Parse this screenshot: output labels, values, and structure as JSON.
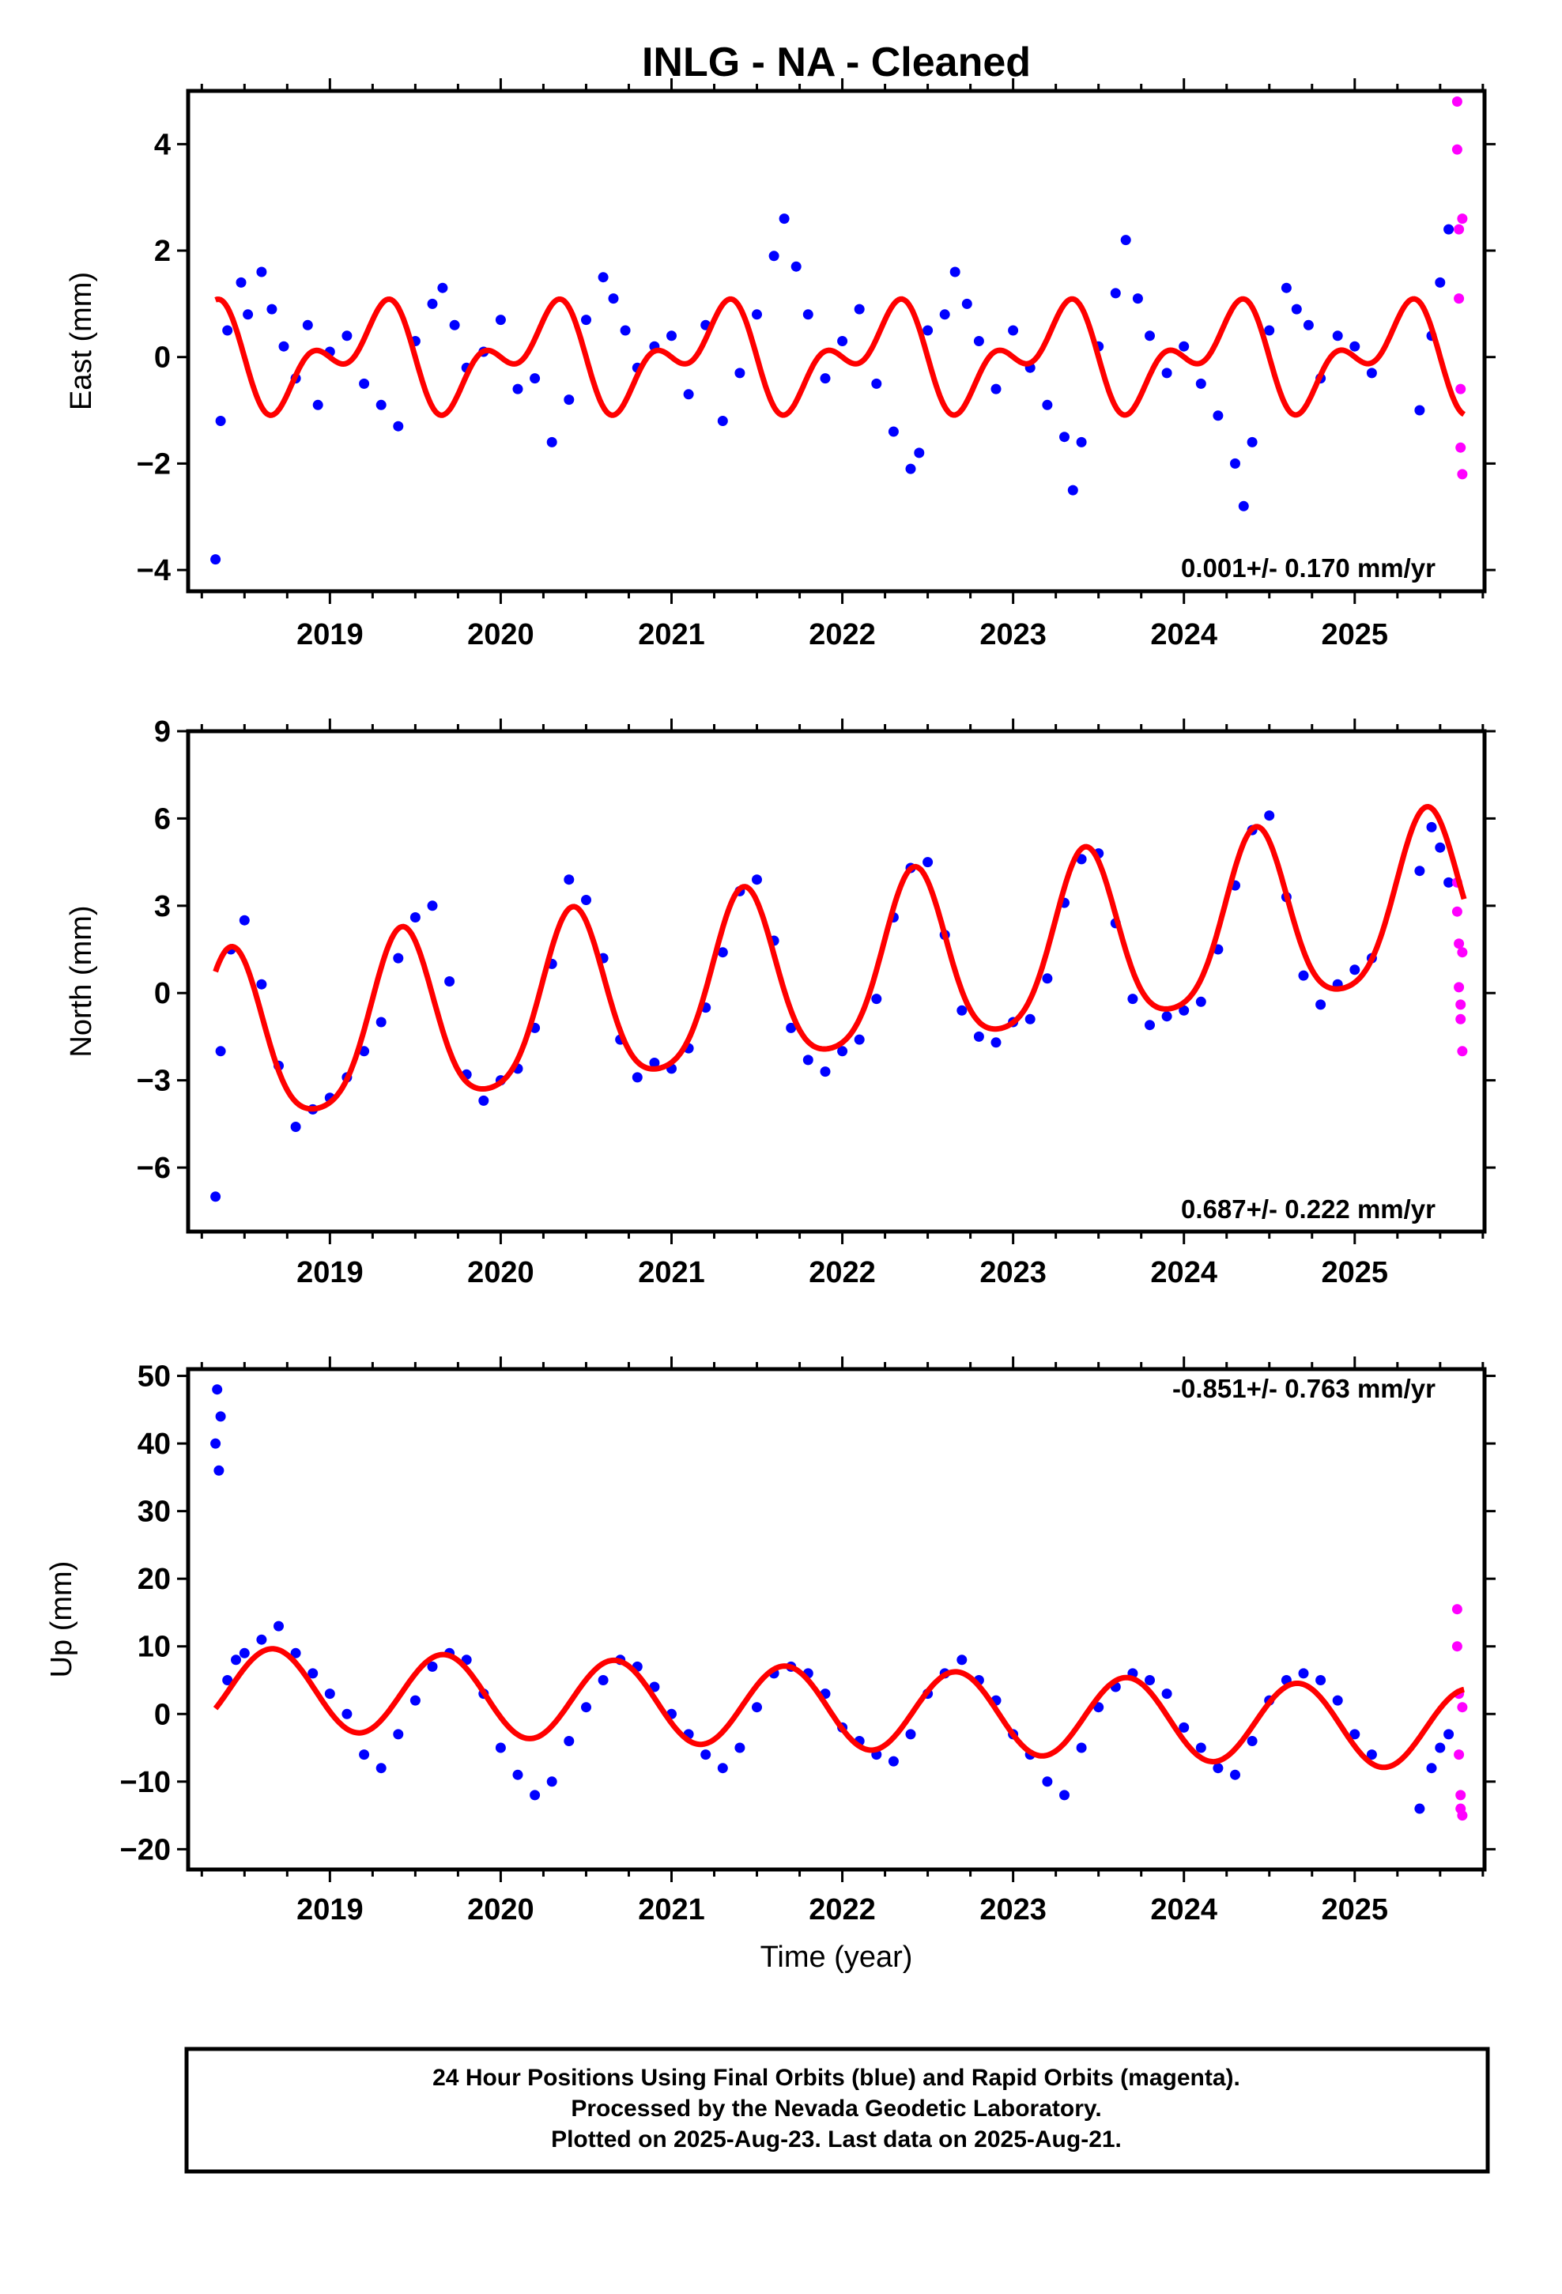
{
  "title": "INLG  - NA - Cleaned",
  "xlabel": "Time (year)",
  "colors": {
    "final": "#0000ff",
    "rapid": "#ff00ff",
    "model": "#ff0000",
    "axis": "#000000"
  },
  "footer": {
    "line1": "24 Hour Positions Using Final Orbits (blue) and Rapid Orbits (magenta).",
    "line2": "Processed by the Nevada Geodetic Laboratory.",
    "line3": "Plotted on 2025-Aug-23. Last data on 2025-Aug-21."
  },
  "chart_data": [
    {
      "type": "scatter",
      "ylabel": "East (mm)",
      "rate_label": "0.001+/- 0.170 mm/yr",
      "xlim": [
        2018.17,
        2025.76
      ],
      "ylim": [
        -4.4,
        5.0
      ],
      "yticks": [
        -4,
        -2,
        0,
        2,
        4
      ],
      "xticks": [
        2019,
        2020,
        2021,
        2022,
        2023,
        2024,
        2025
      ],
      "grid": false,
      "series": [
        {
          "kind": "final",
          "color": "#0000ff",
          "x": [
            2018.33,
            2018.36,
            2018.4,
            2018.48,
            2018.52,
            2018.6,
            2018.66,
            2018.73,
            2018.8,
            2018.87,
            2018.93,
            2019.0,
            2019.1,
            2019.2,
            2019.3,
            2019.4,
            2019.5,
            2019.6,
            2019.66,
            2019.73,
            2019.8,
            2019.9,
            2020.0,
            2020.1,
            2020.2,
            2020.3,
            2020.4,
            2020.5,
            2020.6,
            2020.66,
            2020.73,
            2020.8,
            2020.9,
            2021.0,
            2021.1,
            2021.2,
            2021.3,
            2021.4,
            2021.5,
            2021.6,
            2021.66,
            2021.73,
            2021.8,
            2021.9,
            2022.0,
            2022.1,
            2022.2,
            2022.3,
            2022.4,
            2022.45,
            2022.5,
            2022.6,
            2022.66,
            2022.73,
            2022.8,
            2022.9,
            2023.0,
            2023.1,
            2023.2,
            2023.3,
            2023.35,
            2023.4,
            2023.5,
            2023.6,
            2023.66,
            2023.73,
            2023.8,
            2023.9,
            2024.0,
            2024.1,
            2024.2,
            2024.3,
            2024.35,
            2024.4,
            2024.5,
            2024.6,
            2024.66,
            2024.73,
            2024.8,
            2024.9,
            2025.0,
            2025.1,
            2025.38,
            2025.45,
            2025.5,
            2025.55
          ],
          "y": [
            -3.8,
            -1.2,
            0.5,
            1.4,
            0.8,
            1.6,
            0.9,
            0.2,
            -0.4,
            0.6,
            -0.9,
            0.1,
            0.4,
            -0.5,
            -0.9,
            -1.3,
            0.3,
            1.0,
            1.3,
            0.6,
            -0.2,
            0.1,
            0.7,
            -0.6,
            -0.4,
            -1.6,
            -0.8,
            0.7,
            1.5,
            1.1,
            0.5,
            -0.2,
            0.2,
            0.4,
            -0.7,
            0.6,
            -1.2,
            -0.3,
            0.8,
            1.9,
            2.6,
            1.7,
            0.8,
            -0.4,
            0.3,
            0.9,
            -0.5,
            -1.4,
            -2.1,
            -1.8,
            0.5,
            0.8,
            1.6,
            1.0,
            0.3,
            -0.6,
            0.5,
            -0.2,
            -0.9,
            -1.5,
            -2.5,
            -1.6,
            0.2,
            1.2,
            2.2,
            1.1,
            0.4,
            -0.3,
            0.2,
            -0.5,
            -1.1,
            -2.0,
            -2.8,
            -1.6,
            0.5,
            1.3,
            0.9,
            0.6,
            -0.4,
            0.4,
            0.2,
            -0.3,
            -1.0,
            0.4,
            1.4,
            2.4
          ]
        },
        {
          "kind": "rapid",
          "color": "#ff00ff",
          "x": [
            2025.6,
            2025.6,
            2025.61,
            2025.61,
            2025.62,
            2025.62,
            2025.63,
            2025.63
          ],
          "y": [
            4.8,
            3.9,
            2.4,
            1.1,
            -0.6,
            -1.7,
            -2.2,
            2.6
          ]
        }
      ],
      "model": {
        "color": "#ff0000",
        "offset": 0.0,
        "trend": 0.001,
        "t0": 2022.0,
        "annual": [
          0.0,
          0.7
        ],
        "semiannual": [
          0.0,
          -0.55
        ]
      }
    },
    {
      "type": "scatter",
      "ylabel": "North (mm)",
      "rate_label": "0.687+/- 0.222 mm/yr",
      "xlim": [
        2018.17,
        2025.76
      ],
      "ylim": [
        -8.2,
        9.0
      ],
      "yticks": [
        -6,
        -3,
        0,
        3,
        6,
        9
      ],
      "xticks": [
        2019,
        2020,
        2021,
        2022,
        2023,
        2024,
        2025
      ],
      "grid": false,
      "series": [
        {
          "kind": "final",
          "color": "#0000ff",
          "x": [
            2018.33,
            2018.36,
            2018.42,
            2018.5,
            2018.6,
            2018.7,
            2018.8,
            2018.9,
            2019.0,
            2019.1,
            2019.2,
            2019.3,
            2019.4,
            2019.5,
            2019.6,
            2019.7,
            2019.8,
            2019.9,
            2020.0,
            2020.1,
            2020.2,
            2020.3,
            2020.4,
            2020.5,
            2020.6,
            2020.7,
            2020.8,
            2020.9,
            2021.0,
            2021.1,
            2021.2,
            2021.3,
            2021.4,
            2021.5,
            2021.6,
            2021.7,
            2021.8,
            2021.9,
            2022.0,
            2022.1,
            2022.2,
            2022.3,
            2022.4,
            2022.5,
            2022.6,
            2022.7,
            2022.8,
            2022.9,
            2023.0,
            2023.1,
            2023.2,
            2023.3,
            2023.4,
            2023.5,
            2023.6,
            2023.7,
            2023.8,
            2023.9,
            2024.0,
            2024.1,
            2024.2,
            2024.3,
            2024.4,
            2024.5,
            2024.6,
            2024.7,
            2024.8,
            2024.9,
            2025.0,
            2025.1,
            2025.38,
            2025.45,
            2025.5,
            2025.55
          ],
          "y": [
            -7.0,
            -2.0,
            1.5,
            2.5,
            0.3,
            -2.5,
            -4.6,
            -4.0,
            -3.6,
            -2.9,
            -2.0,
            -1.0,
            1.2,
            2.6,
            3.0,
            0.4,
            -2.8,
            -3.7,
            -3.0,
            -2.6,
            -1.2,
            1.0,
            3.9,
            3.2,
            1.2,
            -1.6,
            -2.9,
            -2.4,
            -2.6,
            -1.9,
            -0.5,
            1.4,
            3.5,
            3.9,
            1.8,
            -1.2,
            -2.3,
            -2.7,
            -2.0,
            -1.6,
            -0.2,
            2.6,
            4.3,
            4.5,
            2.0,
            -0.6,
            -1.5,
            -1.7,
            -1.0,
            -0.9,
            0.5,
            3.1,
            4.6,
            4.8,
            2.4,
            -0.2,
            -1.1,
            -0.8,
            -0.6,
            -0.3,
            1.5,
            3.7,
            5.6,
            6.1,
            3.3,
            0.6,
            -0.4,
            0.3,
            0.8,
            1.2,
            4.2,
            5.7,
            5.0,
            3.8
          ]
        },
        {
          "kind": "rapid",
          "color": "#ff00ff",
          "x": [
            2025.6,
            2025.6,
            2025.61,
            2025.61,
            2025.62,
            2025.62,
            2025.63,
            2025.63
          ],
          "y": [
            3.8,
            2.8,
            1.7,
            0.2,
            -0.4,
            -0.9,
            -2.0,
            1.4
          ]
        }
      ],
      "model": {
        "color": "#ff0000",
        "offset": 0.6,
        "trend": 0.687,
        "t0": 2022.0,
        "annual": [
          -2.6,
          1.4
        ],
        "semiannual": [
          0.3,
          -0.4
        ]
      }
    },
    {
      "type": "scatter",
      "ylabel": "Up (mm)",
      "rate_label": "-0.851+/- 0.763 mm/yr",
      "xlim": [
        2018.17,
        2025.76
      ],
      "ylim": [
        -23.0,
        51.0
      ],
      "yticks": [
        -20,
        -10,
        0,
        10,
        20,
        30,
        40,
        50
      ],
      "xticks": [
        2019,
        2020,
        2021,
        2022,
        2023,
        2024,
        2025
      ],
      "grid": false,
      "series": [
        {
          "kind": "final",
          "color": "#0000ff",
          "x": [
            2018.33,
            2018.34,
            2018.35,
            2018.36,
            2018.4,
            2018.45,
            2018.5,
            2018.6,
            2018.7,
            2018.8,
            2018.9,
            2019.0,
            2019.1,
            2019.2,
            2019.3,
            2019.4,
            2019.5,
            2019.6,
            2019.7,
            2019.8,
            2019.9,
            2020.0,
            2020.1,
            2020.2,
            2020.3,
            2020.4,
            2020.5,
            2020.6,
            2020.7,
            2020.8,
            2020.9,
            2021.0,
            2021.1,
            2021.2,
            2021.3,
            2021.4,
            2021.5,
            2021.6,
            2021.7,
            2021.8,
            2021.9,
            2022.0,
            2022.1,
            2022.2,
            2022.3,
            2022.4,
            2022.5,
            2022.6,
            2022.7,
            2022.8,
            2022.9,
            2023.0,
            2023.1,
            2023.2,
            2023.3,
            2023.4,
            2023.5,
            2023.6,
            2023.7,
            2023.8,
            2023.9,
            2024.0,
            2024.1,
            2024.2,
            2024.3,
            2024.4,
            2024.5,
            2024.6,
            2024.7,
            2024.8,
            2024.9,
            2025.0,
            2025.1,
            2025.38,
            2025.45,
            2025.5,
            2025.55
          ],
          "y": [
            40.0,
            48.0,
            36.0,
            44.0,
            5.0,
            8.0,
            9.0,
            11.0,
            13.0,
            9.0,
            6.0,
            3.0,
            0.0,
            -6.0,
            -8.0,
            -3.0,
            2.0,
            7.0,
            9.0,
            8.0,
            3.0,
            -5.0,
            -9.0,
            -12.0,
            -10.0,
            -4.0,
            1.0,
            5.0,
            8.0,
            7.0,
            4.0,
            0.0,
            -3.0,
            -6.0,
            -8.0,
            -5.0,
            1.0,
            6.0,
            7.0,
            6.0,
            3.0,
            -2.0,
            -4.0,
            -6.0,
            -7.0,
            -3.0,
            3.0,
            6.0,
            8.0,
            5.0,
            2.0,
            -3.0,
            -6.0,
            -10.0,
            -12.0,
            -5.0,
            1.0,
            4.0,
            6.0,
            5.0,
            3.0,
            -2.0,
            -5.0,
            -8.0,
            -9.0,
            -4.0,
            2.0,
            5.0,
            6.0,
            5.0,
            2.0,
            -3.0,
            -6.0,
            -14.0,
            -8.0,
            -5.0,
            -3.0
          ]
        },
        {
          "kind": "rapid",
          "color": "#ff00ff",
          "x": [
            2025.6,
            2025.6,
            2025.61,
            2025.61,
            2025.62,
            2025.62,
            2025.63,
            2025.63
          ],
          "y": [
            15.5,
            10.0,
            3.0,
            -6.0,
            -12.0,
            -14.0,
            -15.0,
            1.0
          ]
        }
      ],
      "model": {
        "color": "#ff0000",
        "offset": 0.8,
        "trend": -0.851,
        "t0": 2022.0,
        "annual": [
          -3.0,
          -5.2
        ],
        "semiannual": [
          0.0,
          0.0
        ]
      }
    }
  ]
}
